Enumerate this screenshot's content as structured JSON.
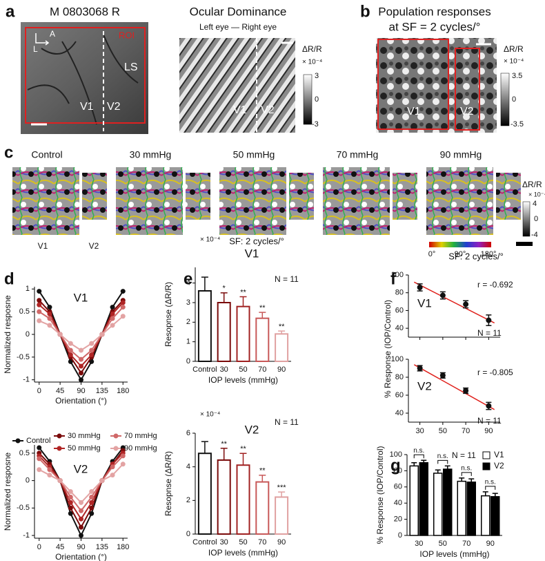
{
  "panel_letters": [
    "a",
    "b",
    "c",
    "d",
    "e",
    "f",
    "g"
  ],
  "panel_a": {
    "left": {
      "title": "M 0803068 R",
      "roi": "ROI",
      "arrow_a": "A",
      "arrow_l": "L",
      "ls": "LS",
      "v1": "V1",
      "v2": "V2"
    },
    "right": {
      "title": "Ocular Dominance",
      "subtitle": "Left eye — Right eye",
      "colorbar": {
        "label": "ΔR/R",
        "scale": "× 10⁻⁴",
        "ticks": [
          3,
          0,
          -3
        ]
      },
      "v1": "V1",
      "v2": "V2"
    }
  },
  "panel_b": {
    "title": "Population responses",
    "subtitle": "at SF = 2 cycles/°",
    "colorbar": {
      "label": "ΔR/R",
      "scale": "× 10⁻⁴",
      "ticks": [
        3.5,
        0,
        -3.5
      ]
    },
    "v1": "V1",
    "v2": "V2"
  },
  "panel_c": {
    "conditions": [
      "Control",
      "30 mmHg",
      "50 mmHg",
      "70 mmHg",
      "90 mmHg"
    ],
    "v1": "V1",
    "v2": "V2",
    "colorbar": {
      "label": "ΔR/R",
      "scale": "× 10⁻⁴",
      "ticks": [
        4,
        0,
        -4
      ]
    },
    "orientation_ticks": [
      "0°",
      "90°",
      "180°"
    ]
  },
  "chart_data": [
    {
      "type": "line",
      "title": "V1",
      "x": [
        0,
        22.5,
        45,
        67.5,
        90,
        112.5,
        135,
        157.5,
        180
      ],
      "xlim": [
        -10,
        190
      ],
      "xticks": [
        0,
        45,
        90,
        135,
        180
      ],
      "ylim": [
        -1.05,
        1.05
      ],
      "yticks": [
        -1,
        -0.5,
        0,
        0.5,
        1
      ],
      "xlabel": "Orientation (°)",
      "ylabel": "Normalized resposne",
      "series": [
        {
          "name": "Control",
          "color": "#111111",
          "values": [
            0.95,
            0.6,
            0,
            -0.6,
            -1,
            -0.6,
            0,
            0.6,
            0.95
          ]
        },
        {
          "name": "30 mmHg",
          "color": "#7a0a0a",
          "values": [
            0.75,
            0.5,
            0,
            -0.5,
            -0.85,
            -0.5,
            0,
            0.5,
            0.75
          ]
        },
        {
          "name": "50 mmHg",
          "color": "#b02525",
          "values": [
            0.65,
            0.45,
            0,
            -0.45,
            -0.7,
            -0.45,
            0,
            0.45,
            0.7
          ]
        },
        {
          "name": "70 mmHg",
          "color": "#d06868",
          "values": [
            0.5,
            0.35,
            0,
            -0.35,
            -0.55,
            -0.35,
            0,
            0.35,
            0.6
          ]
        },
        {
          "name": "90 mmHg",
          "color": "#e3a3a3",
          "values": [
            0.3,
            0.2,
            0,
            -0.2,
            -0.35,
            -0.2,
            0,
            0.2,
            0.4
          ]
        }
      ]
    },
    {
      "type": "line",
      "title": "V2",
      "x": [
        0,
        22.5,
        45,
        67.5,
        90,
        112.5,
        135,
        157.5,
        180
      ],
      "xlim": [
        -10,
        190
      ],
      "xticks": [
        0,
        45,
        90,
        135,
        180
      ],
      "ylim": [
        -1.05,
        0.65
      ],
      "yticks": [
        -1,
        -0.5,
        0,
        0.5
      ],
      "xlabel": "Orientation (°)",
      "ylabel": "Normalized resposne",
      "series": [
        {
          "color": "#111111",
          "values": [
            0.6,
            0.35,
            0,
            -0.6,
            -1,
            -0.6,
            0,
            0.35,
            0.6
          ]
        },
        {
          "color": "#7a0a0a",
          "values": [
            0.5,
            0.3,
            0,
            -0.5,
            -0.85,
            -0.5,
            0,
            0.3,
            0.55
          ]
        },
        {
          "color": "#b02525",
          "values": [
            0.45,
            0.25,
            0,
            -0.4,
            -0.7,
            -0.4,
            0,
            0.3,
            0.5
          ]
        },
        {
          "color": "#d06868",
          "values": [
            0.4,
            0.2,
            0,
            -0.3,
            -0.55,
            -0.3,
            0,
            0.25,
            0.45
          ]
        },
        {
          "color": "#e3a3a3",
          "values": [
            0.2,
            0.1,
            0,
            -0.2,
            -0.4,
            -0.2,
            0,
            0.1,
            0.3
          ]
        }
      ]
    },
    {
      "type": "bar",
      "subtitle": "SF: 2 cycles/°",
      "title": "V1",
      "scale_label": "× 10⁻⁴",
      "annotation": "N = 11",
      "categories": [
        "Control",
        "30",
        "50",
        "70",
        "90"
      ],
      "values": [
        3.6,
        3.0,
        2.8,
        2.2,
        1.4
      ],
      "errors": [
        0.7,
        0.5,
        0.5,
        0.3,
        0.15
      ],
      "significance": [
        null,
        "*",
        "**",
        "**",
        "**"
      ],
      "colors": [
        "#111111",
        "#7a0a0a",
        "#a02020",
        "#c85858",
        "#e0a0a0"
      ],
      "ylim": [
        0,
        4.8
      ],
      "yticks": [
        0,
        1,
        2,
        3,
        4
      ],
      "xlabel": "IOP levels (mmHg)",
      "ylabel": "Resopnse (ΔR/R)"
    },
    {
      "type": "bar",
      "title": "V2",
      "scale_label": "× 10⁻⁴",
      "annotation": "N = 11",
      "categories": [
        "Control",
        "30",
        "50",
        "70",
        "90"
      ],
      "values": [
        4.8,
        4.4,
        4.1,
        3.1,
        2.2
      ],
      "errors": [
        0.7,
        0.7,
        0.7,
        0.4,
        0.3
      ],
      "significance": [
        null,
        "**",
        "**",
        "**",
        "***"
      ],
      "colors": [
        "#111111",
        "#7a0a0a",
        "#a02020",
        "#c85858",
        "#e0a0a0"
      ],
      "ylim": [
        0,
        6
      ],
      "yticks": [
        0,
        2,
        4,
        6
      ],
      "xlabel": "IOP levels (mmHg)",
      "ylabel": "Resopnse (ΔR/R)"
    },
    {
      "type": "scatter",
      "subtitle": "SF: 2 cycles/°",
      "title": "V1",
      "x": [
        30,
        50,
        70,
        90
      ],
      "values": [
        86,
        77,
        67,
        49
      ],
      "errors": [
        4,
        4,
        4,
        6
      ],
      "color": "#111111",
      "fit": {
        "x": [
          25,
          95
        ],
        "y": [
          92,
          46
        ],
        "color": "#e0201b"
      },
      "annotations": [
        "r = -0.692",
        "N = 11"
      ],
      "xlim": [
        20,
        100
      ],
      "xticks": [
        30,
        50,
        70,
        90
      ],
      "xtick_labels": false,
      "ylim": [
        30,
        100
      ],
      "yticks": [
        40,
        60,
        80,
        100
      ]
    },
    {
      "type": "scatter",
      "title": "V2",
      "x": [
        30,
        50,
        70,
        90
      ],
      "values": [
        90,
        82,
        65,
        48
      ],
      "errors": [
        3,
        3,
        3,
        4
      ],
      "color": "#111111",
      "fit": {
        "x": [
          25,
          95
        ],
        "y": [
          94,
          44
        ],
        "color": "#e0201b"
      },
      "annotations": [
        "r = -0.805",
        "N = 11"
      ],
      "xlim": [
        20,
        100
      ],
      "xticks": [
        30,
        50,
        70,
        90
      ],
      "xtick_labels": true,
      "ylim": [
        30,
        100
      ],
      "yticks": [
        40,
        60,
        80,
        100
      ],
      "ylabel": "% Response (IOP/Control)"
    },
    {
      "type": "grouped_bar",
      "annotation": "N = 11",
      "categories": [
        "30",
        "50",
        "70",
        "90"
      ],
      "series": [
        {
          "name": "V1",
          "color": "#ffffff",
          "values": [
            86,
            77,
            67,
            49
          ],
          "errors": [
            4,
            4,
            4,
            5
          ]
        },
        {
          "name": "V2",
          "color": "#000000",
          "values": [
            90,
            82,
            66,
            48
          ],
          "errors": [
            3,
            4,
            4,
            4
          ]
        }
      ],
      "brackets": [
        "n.s.",
        "n.s.",
        "n.s.",
        "n.s."
      ],
      "ylim": [
        0,
        100
      ],
      "yticks": [
        0,
        20,
        40,
        60,
        80,
        100
      ],
      "xlabel": "IOP levels (mmHg)",
      "ylabel": "% Response (IOP/Control)"
    }
  ]
}
